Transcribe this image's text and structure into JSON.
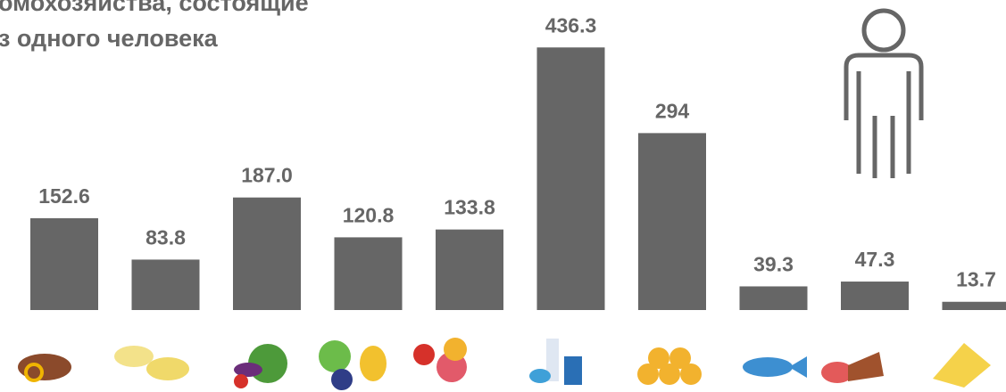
{
  "chart_data": {
    "type": "bar",
    "title_lines": [
      "омохозяйства, состоящие",
      "з одного человека"
    ],
    "categories": [
      null,
      null,
      null,
      null,
      null,
      null,
      null,
      null,
      null,
      null
    ],
    "values": [
      152.6,
      83.8,
      187.0,
      120.8,
      133.8,
      436.3,
      294,
      39.3,
      47.3,
      13.7
    ],
    "value_labels": [
      "152.6",
      "83.8",
      "187.0",
      "120.8",
      "133.8",
      "436.3",
      "294",
      "39.3",
      "47.3",
      "13.7"
    ],
    "color": "#666666",
    "ylim": [
      0,
      450
    ]
  }
}
